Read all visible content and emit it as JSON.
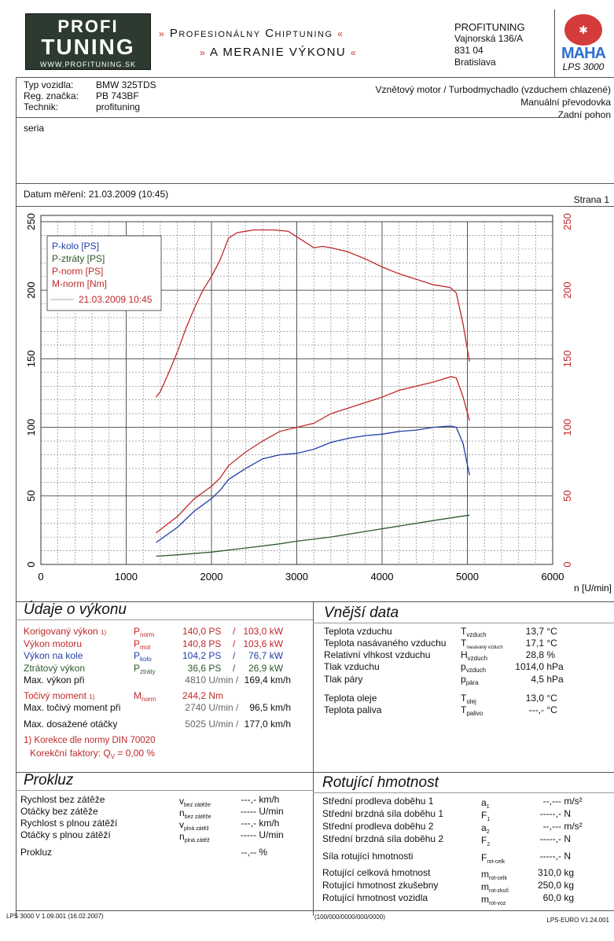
{
  "header": {
    "logo": {
      "line1": "PROFI",
      "tagline": "THE CHIPTUNING COMPANY",
      "line2": "TUNING",
      "url": "WWW.PROFITUNING.SK"
    },
    "slogan1": "Profesionálny Chiptuning",
    "slogan2": "a meranie výkonu",
    "quote_open": "»",
    "quote_close": "«",
    "address": [
      "PROFITUNING",
      "Vajnorská 136/A",
      "831 04",
      "Bratislava"
    ],
    "maha_logo": "MAHA",
    "maha_seal": "Maschinenbau Haldenwang",
    "lps": "LPS 3000"
  },
  "vehicle": {
    "labels": [
      "Typ vozidla:",
      "Reg. značka:",
      "Technik:"
    ],
    "values": [
      "BMW 325TDS",
      "PB 743BF",
      "profituning"
    ],
    "engine": "Vznětový motor / Turbodmychadlo (vzduchem chlazené)",
    "gearbox": "Manuální převodovka",
    "drive": "Zadní pohon",
    "note": "seria",
    "date": "Datum měření: 21.03.2009 (10:45)",
    "page": "Strana 1"
  },
  "chart_data": {
    "type": "line",
    "xlabel": "n [U/min]",
    "xlim": [
      0,
      6000
    ],
    "xticks": [
      "0",
      "1000",
      "2000",
      "3000",
      "4000",
      "5000",
      "6000"
    ],
    "ylim": [
      0,
      250
    ],
    "yticks_left": [
      "0",
      "50",
      "100",
      "150",
      "200",
      "250"
    ],
    "yticks_right": [
      "0",
      "50",
      "100",
      "150",
      "200",
      "250"
    ],
    "grid": true,
    "legend_placement": "top-left",
    "legend_date": "21.03.2009 10:45",
    "series": [
      {
        "name": "P-kolo [PS]",
        "color": "#1f3fa8",
        "x": [
          1350,
          1600,
          1800,
          2000,
          2100,
          2200,
          2400,
          2600,
          2800,
          3000,
          3200,
          3400,
          3600,
          3800,
          4000,
          4200,
          4400,
          4600,
          4800,
          4870,
          4950,
          5025
        ],
        "y": [
          16,
          27,
          39,
          48,
          54,
          62,
          70,
          77,
          80,
          81,
          84,
          89,
          92,
          94,
          95,
          97,
          98,
          100,
          101,
          100,
          88,
          65
        ]
      },
      {
        "name": "P-ztráty [PS]",
        "color": "#2c5a2c",
        "x": [
          1350,
          1600,
          2000,
          2400,
          2800,
          3000,
          3400,
          3800,
          4200,
          4600,
          5025
        ],
        "y": [
          6,
          7,
          9,
          12,
          15,
          17,
          20,
          24,
          28,
          32,
          36
        ]
      },
      {
        "name": "P-norm [PS]",
        "color": "#c0282a",
        "x": [
          1350,
          1600,
          1800,
          2000,
          2100,
          2200,
          2400,
          2600,
          2800,
          3000,
          3200,
          3400,
          3600,
          3800,
          4000,
          4200,
          4400,
          4600,
          4810,
          4870,
          4950,
          5025
        ],
        "y": [
          23,
          35,
          48,
          57,
          63,
          72,
          82,
          90,
          97,
          100,
          103,
          110,
          114,
          118,
          122,
          127,
          130,
          133,
          137,
          136,
          122,
          105
        ]
      },
      {
        "name": "M-norm [Nm]",
        "color": "#c0282a",
        "x": [
          1350,
          1400,
          1500,
          1600,
          1700,
          1800,
          1900,
          2000,
          2100,
          2200,
          2300,
          2400,
          2500,
          2600,
          2740,
          2900,
          3000,
          3100,
          3200,
          3300,
          3400,
          3600,
          3800,
          4000,
          4200,
          4400,
          4600,
          4800,
          4870,
          4950,
          5025
        ],
        "y": [
          122,
          126,
          140,
          155,
          172,
          187,
          200,
          210,
          222,
          238,
          242,
          243,
          244,
          244,
          244,
          243,
          239,
          235,
          231,
          232,
          231,
          228,
          223,
          217,
          212,
          208,
          204,
          202,
          198,
          175,
          148
        ]
      }
    ]
  },
  "performance": {
    "title": "Údaje o výkonu",
    "rows": [
      {
        "label": "Korigovaný výkon",
        "fn": "1)",
        "sym": "P",
        "sub": "norm",
        "v1": "140,0",
        "u1": "PS",
        "sep": "/",
        "v2": "103,0",
        "u2": "kW",
        "cls": "red"
      },
      {
        "label": "Výkon motoru",
        "fn": "",
        "sym": "P",
        "sub": "mot",
        "v1": "140,8",
        "u1": "PS",
        "sep": "/",
        "v2": "103,6",
        "u2": "kW",
        "cls": "red"
      },
      {
        "label": "Výkon na kole",
        "fn": "",
        "sym": "P",
        "sub": "kolo",
        "v1": "104,2",
        "u1": "PS",
        "sep": "/",
        "v2": "76,7",
        "u2": "kW",
        "cls": "blue"
      },
      {
        "label": "Ztrátový výkon",
        "fn": "",
        "sym": "P",
        "sub": "ztráty",
        "v1": "36,6",
        "u1": "PS",
        "sep": "/",
        "v2": "26,9",
        "u2": "kW",
        "cls": "green"
      }
    ],
    "maxpower": {
      "label": "Max. výkon při",
      "rpm": "4810",
      "u1": "U/min /",
      "speed": "169,4",
      "u2": "km/h"
    },
    "torque": {
      "label": "Točivý moment",
      "fn": "1)",
      "sym": "M",
      "sub": "norm",
      "v": "244,2",
      "u": "Nm"
    },
    "maxtorque": {
      "label": "Max. točivý moment při",
      "rpm": "2740",
      "u1": "U/min /",
      "speed": "96,5",
      "u2": "km/h"
    },
    "maxrpm": {
      "label": "Max. dosažené otáčky",
      "rpm": "5025",
      "u1": "U/min /",
      "speed": "177,0",
      "u2": "km/h"
    },
    "note1": "1) Korekce dle normy DIN 70020",
    "note2": "Korekční faktory: Q",
    "note2_sub": "V",
    "note2_val": " =   0,00 %"
  },
  "external": {
    "title": "Vnější data",
    "rows": [
      {
        "label": "Teplota vzduchu",
        "sym": "T",
        "sub": "vzduch",
        "v": "13,7",
        "u": "°C"
      },
      {
        "label": "Teplota nasávaného vzduchu",
        "sym": "T",
        "sub": "nasávaný vzduch",
        "v": "17,1",
        "u": "°C"
      },
      {
        "label": "Relativní vlhkost vzduchu",
        "sym": "H",
        "sub": "vzduch",
        "v": "28,8",
        "u": "%"
      },
      {
        "label": "Tlak vzduchu",
        "sym": "p",
        "sub": "vzduch",
        "v": "1014,0",
        "u": "hPa"
      },
      {
        "label": "Tlak páry",
        "sym": "p",
        "sub": "pára",
        "v": "4,5",
        "u": "hPa"
      },
      {
        "label": "Teplota oleje",
        "sym": "T",
        "sub": "olej",
        "v": "13,0",
        "u": "°C"
      },
      {
        "label": "Teplota paliva",
        "sym": "T",
        "sub": "palivo",
        "v": "---,-",
        "u": "°C"
      }
    ]
  },
  "slip": {
    "title": "Prokluz",
    "rows": [
      {
        "label": "Rychlost bez zátěže",
        "sym": "v",
        "sub": "bez zátěže",
        "v": "---,-",
        "u": "km/h"
      },
      {
        "label": "Otáčky bez zátěže",
        "sym": "n",
        "sub": "bez zátěže",
        "v": "-----",
        "u": "U/min"
      },
      {
        "label": "Rychlost s plnou zátěží",
        "sym": "v",
        "sub": "plná zátěž",
        "v": "---,-",
        "u": "km/h"
      },
      {
        "label": "Otáčky s plnou zátěží",
        "sym": "n",
        "sub": "plná zátěž",
        "v": "-----",
        "u": "U/min"
      },
      {
        "label": "Prokluz",
        "sym": "",
        "sub": "",
        "v": "--,--",
        "u": "%"
      }
    ]
  },
  "rotating": {
    "title": "Rotující hmotnost",
    "rows": [
      {
        "label": "Střední prodleva doběhu 1",
        "sym": "a",
        "sub": "1",
        "v": "--,---",
        "u": "m/s²"
      },
      {
        "label": "Střední brzdná síla doběhu 1",
        "sym": "F",
        "sub": "1",
        "v": "-----,-",
        "u": "N"
      },
      {
        "label": "Střední prodleva doběhu 2",
        "sym": "a",
        "sub": "2",
        "v": "--,---",
        "u": "m/s²"
      },
      {
        "label": "Střední brzdná síla doběhu 2",
        "sym": "F",
        "sub": "2",
        "v": "-----,-",
        "u": "N"
      },
      {
        "label": "Síla rotující hmotnosti",
        "sym": "F",
        "sub": "rot-celk",
        "v": "-----,-",
        "u": "N"
      },
      {
        "label": "Rotující celková hmotnost",
        "sym": "m",
        "sub": "rot-celk",
        "v": "310,0",
        "u": "kg"
      },
      {
        "label": "Rotující hmotnost zkušebny",
        "sym": "m",
        "sub": "rot-zkuš",
        "v": "250,0",
        "u": "kg"
      },
      {
        "label": "Rotující hmotnost vozidla",
        "sym": "m",
        "sub": "rot-voz",
        "v": "60,0",
        "u": "kg"
      }
    ]
  },
  "footer": {
    "left": "LPS 3000 V 1.09.001 (16.02.2007)",
    "center": "(100/000/0000/000/0000)",
    "right": "LPS-EURO V1.24.001"
  }
}
